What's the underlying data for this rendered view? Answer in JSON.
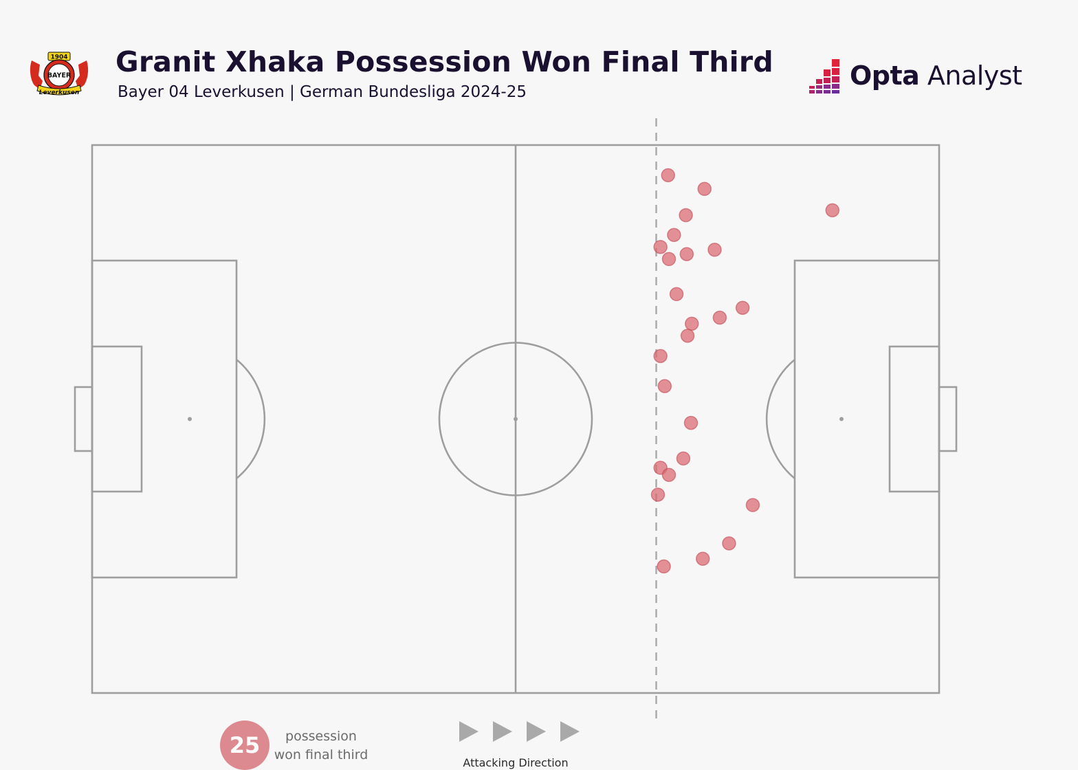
{
  "header": {
    "title": "Granit Xhaka Possession Won Final Third",
    "subtitle": "Bayer 04 Leverkusen | German Bundesliga 2024-25",
    "crest": {
      "year": "1904",
      "ring_text": "BAYER",
      "banner": "Leverkusen"
    },
    "brand": {
      "bold": "Opta",
      "light": "Analyst"
    }
  },
  "legend": {
    "count": "25",
    "label_line1": "possession",
    "label_line2": "won final third"
  },
  "attacking_direction": "Attacking Direction",
  "colors": {
    "background": "#f7f7f7",
    "pitch_lines": "#9e9e9e",
    "marker": "#d9666f",
    "arrow": "#a9a9a9",
    "text": "#1a1030"
  },
  "chart_data": {
    "type": "scatter",
    "coordinate_system": "pitch 0-100 (x: own goal to opponent goal, y: top to bottom touchline)",
    "xlim": [
      0,
      100
    ],
    "ylim": [
      0,
      100
    ],
    "final_third_line_x": 66.6,
    "points": [
      {
        "x": 68.0,
        "y": 5.5
      },
      {
        "x": 72.3,
        "y": 8.0
      },
      {
        "x": 87.4,
        "y": 11.9
      },
      {
        "x": 70.1,
        "y": 12.8
      },
      {
        "x": 68.7,
        "y": 16.4
      },
      {
        "x": 67.1,
        "y": 18.6
      },
      {
        "x": 70.2,
        "y": 19.9
      },
      {
        "x": 73.5,
        "y": 19.1
      },
      {
        "x": 68.1,
        "y": 20.8
      },
      {
        "x": 69.0,
        "y": 27.2
      },
      {
        "x": 76.8,
        "y": 29.7
      },
      {
        "x": 74.1,
        "y": 31.5
      },
      {
        "x": 70.8,
        "y": 32.6
      },
      {
        "x": 70.3,
        "y": 34.8
      },
      {
        "x": 67.1,
        "y": 38.5
      },
      {
        "x": 67.6,
        "y": 44.0
      },
      {
        "x": 70.7,
        "y": 50.7
      },
      {
        "x": 69.8,
        "y": 57.2
      },
      {
        "x": 67.1,
        "y": 58.9
      },
      {
        "x": 68.1,
        "y": 60.2
      },
      {
        "x": 66.8,
        "y": 63.8
      },
      {
        "x": 78.0,
        "y": 65.7
      },
      {
        "x": 75.2,
        "y": 72.7
      },
      {
        "x": 72.1,
        "y": 75.5
      },
      {
        "x": 67.5,
        "y": 76.9
      }
    ]
  }
}
